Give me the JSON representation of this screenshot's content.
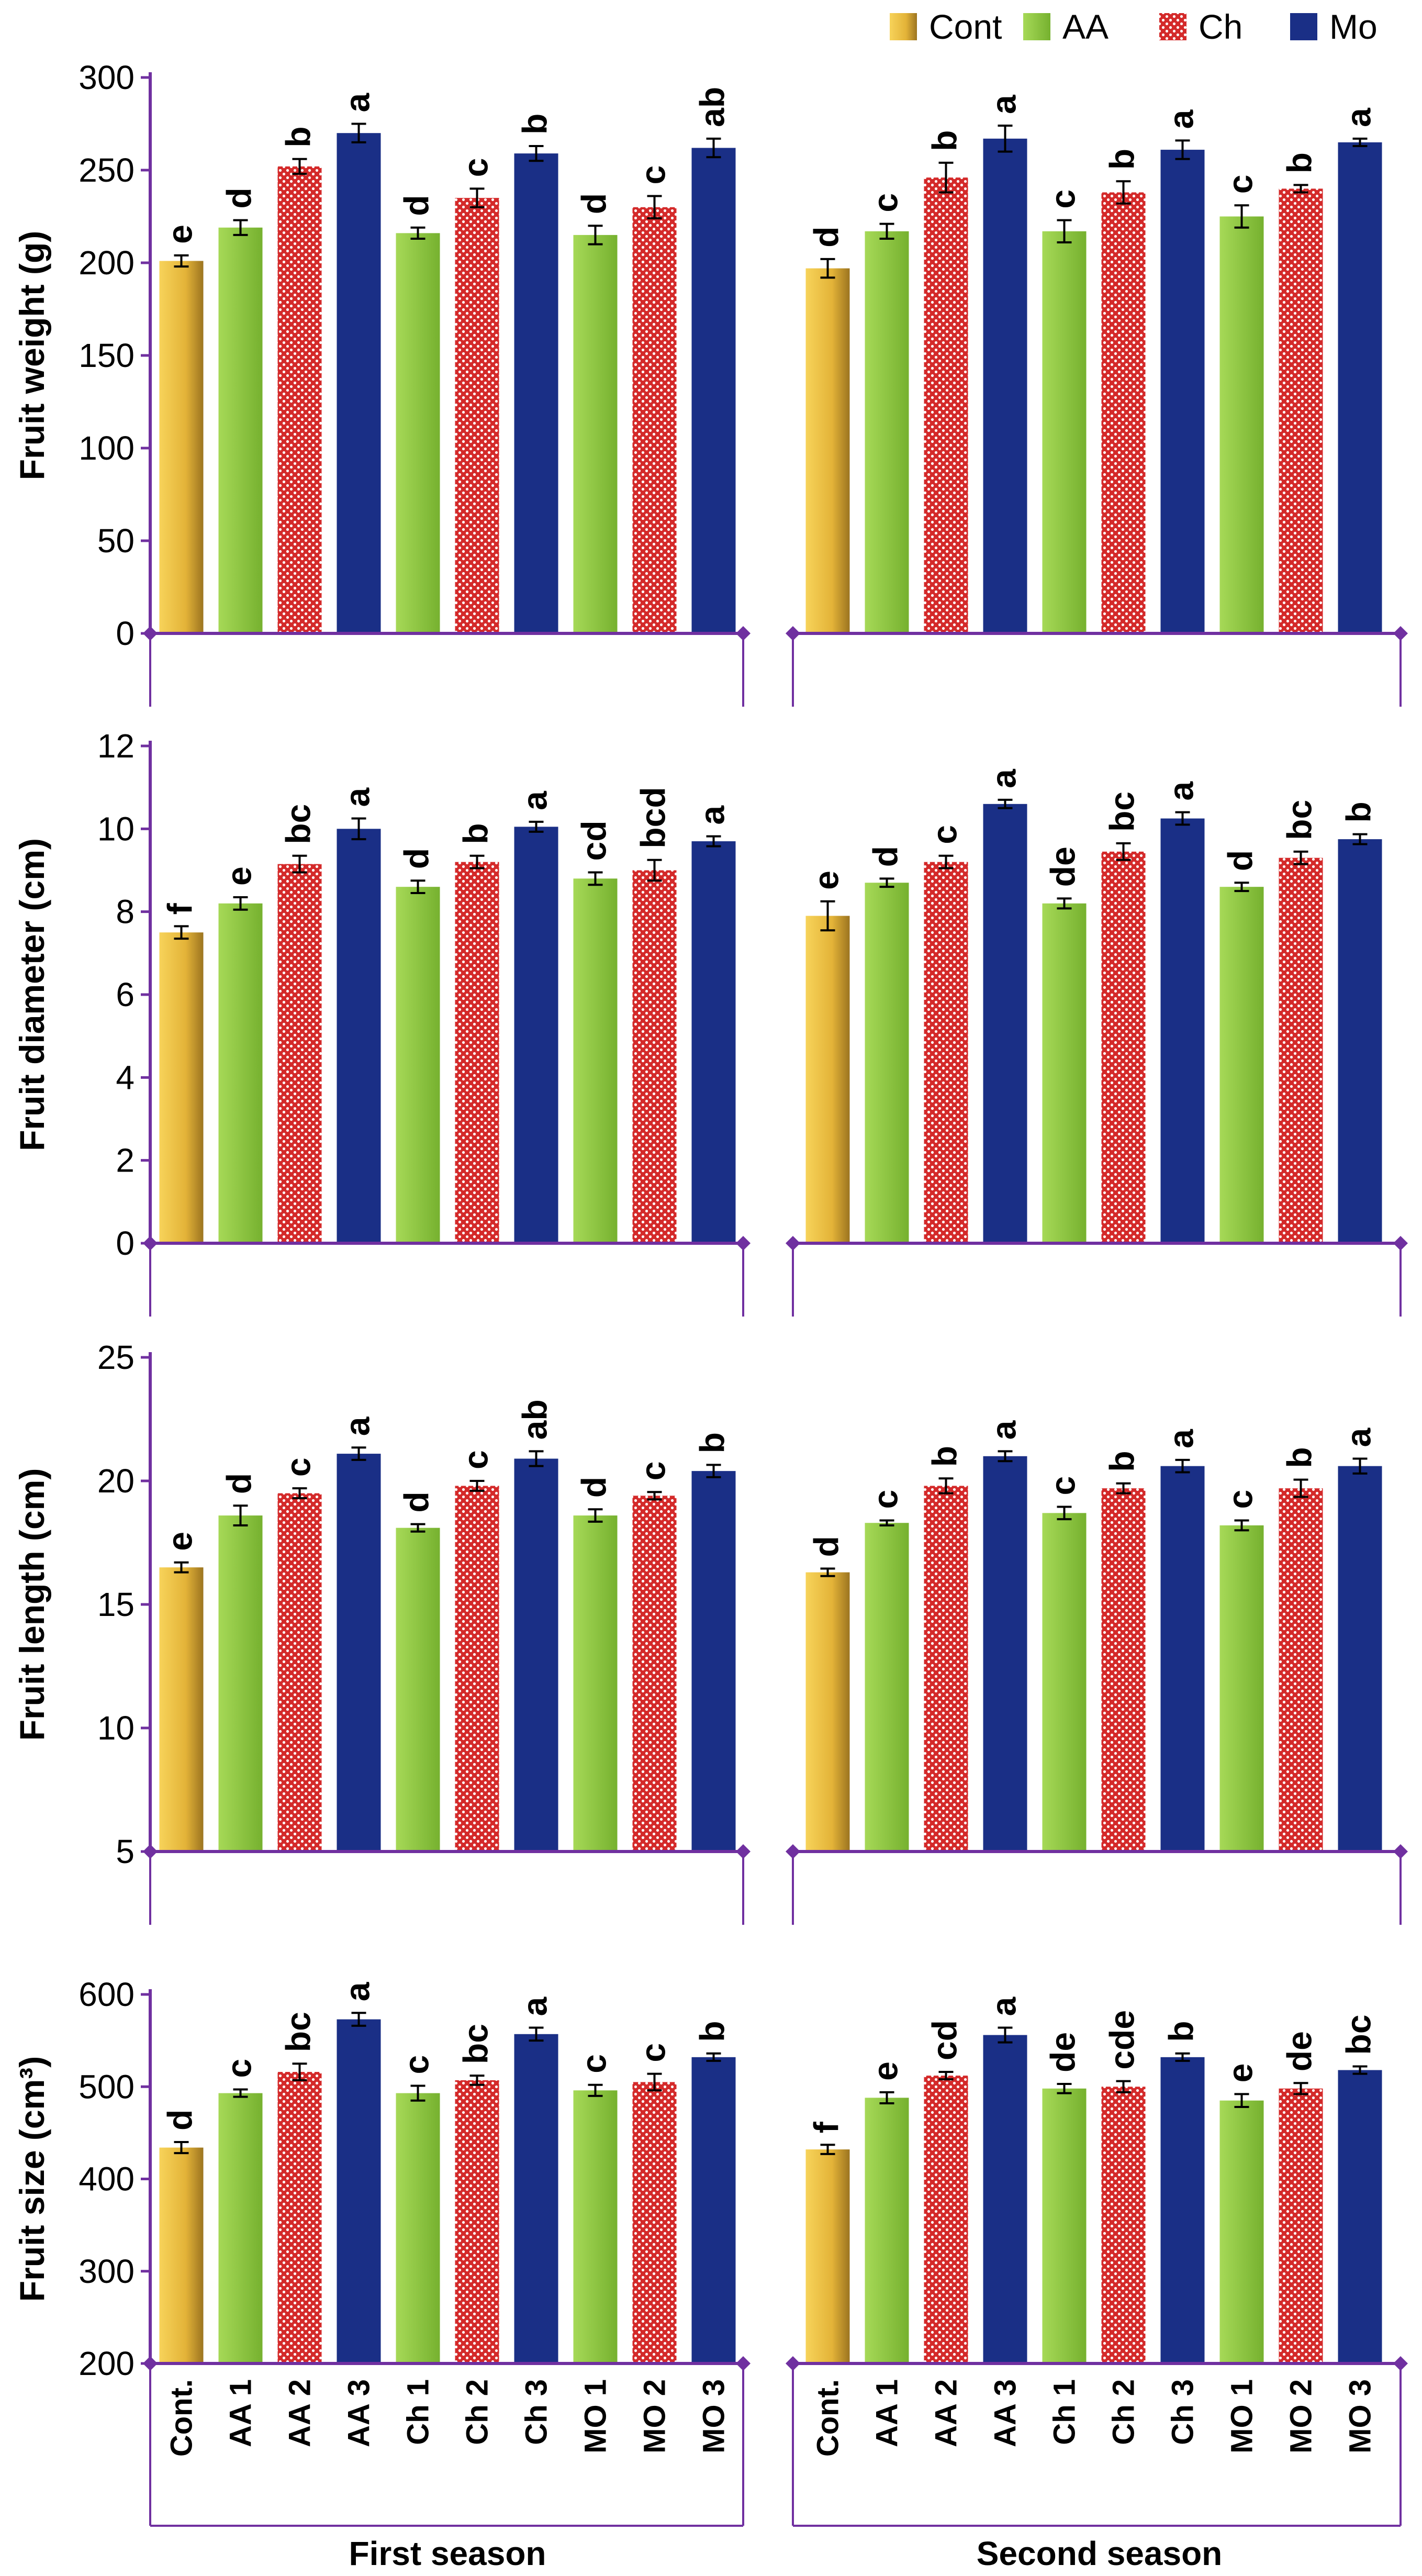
{
  "colors": {
    "cont": "#e9b73a",
    "aa": "#8cc63f",
    "ch": "#d42a2a",
    "mo": "#1a2f86",
    "axis": "#7030a0"
  },
  "legend": [
    {
      "key": "cont",
      "label": "Cont"
    },
    {
      "key": "aa",
      "label": "AA"
    },
    {
      "key": "ch",
      "label": "Ch"
    },
    {
      "key": "mo",
      "label": "Mo"
    }
  ],
  "seasons": [
    "First season",
    "Second season"
  ],
  "categories": [
    "Cont.",
    "AA 1",
    "AA 2",
    "AA 3",
    "Ch 1",
    "Ch 2",
    "Ch 3",
    "MO 1",
    "MO 2",
    "MO 3"
  ],
  "bar_types": [
    "cont",
    "aa",
    "ch",
    "mo",
    "aa",
    "ch",
    "mo",
    "aa",
    "ch",
    "mo"
  ],
  "chart_data": [
    {
      "type": "bar",
      "ylabel": "Fruit weight (g)",
      "ylim": [
        0,
        300
      ],
      "yticks": [
        0,
        50,
        100,
        150,
        200,
        250,
        300
      ],
      "categories": [
        "Cont.",
        "AA 1",
        "AA 2",
        "AA 3",
        "Ch 1",
        "Ch 2",
        "Ch 3",
        "MO 1",
        "MO 2",
        "MO 3"
      ],
      "series": [
        {
          "name": "First season",
          "values": [
            201,
            219,
            252,
            270,
            216,
            235,
            259,
            215,
            230,
            262
          ],
          "errors": [
            3,
            4,
            4,
            5,
            3,
            5,
            4,
            5,
            6,
            5
          ],
          "letters": [
            "e",
            "d",
            "b",
            "a",
            "d",
            "c",
            "b",
            "d",
            "c",
            "ab"
          ]
        },
        {
          "name": "Second season",
          "values": [
            197,
            217,
            246,
            267,
            217,
            238,
            261,
            225,
            240,
            265
          ],
          "errors": [
            5,
            4,
            8,
            7,
            6,
            6,
            5,
            6,
            2,
            2
          ],
          "letters": [
            "d",
            "c",
            "b",
            "a",
            "c",
            "b",
            "a",
            "c",
            "b",
            "a"
          ]
        }
      ]
    },
    {
      "type": "bar",
      "ylabel": "Fruit diameter (cm)",
      "ylim": [
        0,
        12
      ],
      "yticks": [
        0,
        2,
        4,
        6,
        8,
        10,
        12
      ],
      "categories": [
        "Cont.",
        "AA 1",
        "AA 2",
        "AA 3",
        "Ch 1",
        "Ch 2",
        "Ch 3",
        "MO 1",
        "MO 2",
        "MO 3"
      ],
      "series": [
        {
          "name": "First season",
          "values": [
            7.5,
            8.2,
            9.15,
            10.0,
            8.6,
            9.2,
            10.05,
            8.8,
            9.0,
            9.7
          ],
          "errors": [
            0.15,
            0.15,
            0.2,
            0.25,
            0.15,
            0.15,
            0.12,
            0.15,
            0.25,
            0.12
          ],
          "letters": [
            "f",
            "e",
            "bc",
            "a",
            "d",
            "b",
            "a",
            "cd",
            "bcd",
            "a"
          ]
        },
        {
          "name": "Second season",
          "values": [
            7.9,
            8.7,
            9.2,
            10.6,
            8.2,
            9.45,
            10.25,
            8.6,
            9.3,
            9.75
          ],
          "errors": [
            0.35,
            0.1,
            0.15,
            0.1,
            0.12,
            0.2,
            0.15,
            0.1,
            0.15,
            0.12
          ],
          "letters": [
            "e",
            "d",
            "c",
            "a",
            "de",
            "bc",
            "a",
            "d",
            "bc",
            "b"
          ]
        }
      ]
    },
    {
      "type": "bar",
      "ylabel": "Fruit length (cm)",
      "ylim": [
        5,
        25
      ],
      "yticks": [
        5,
        10,
        15,
        20,
        25
      ],
      "categories": [
        "Cont.",
        "AA 1",
        "AA 2",
        "AA 3",
        "Ch 1",
        "Ch 2",
        "Ch 3",
        "MO 1",
        "MO 2",
        "MO 3"
      ],
      "series": [
        {
          "name": "First season",
          "values": [
            16.5,
            18.6,
            19.5,
            21.1,
            18.1,
            19.8,
            20.9,
            18.6,
            19.4,
            20.4
          ],
          "errors": [
            0.2,
            0.4,
            0.2,
            0.25,
            0.15,
            0.2,
            0.3,
            0.25,
            0.15,
            0.25
          ],
          "letters": [
            "e",
            "d",
            "c",
            "a",
            "d",
            "c",
            "ab",
            "d",
            "c",
            "b"
          ]
        },
        {
          "name": "Second season",
          "values": [
            16.3,
            18.3,
            19.8,
            21.0,
            18.7,
            19.7,
            20.6,
            18.2,
            19.7,
            20.6
          ],
          "errors": [
            0.15,
            0.1,
            0.3,
            0.2,
            0.25,
            0.2,
            0.25,
            0.2,
            0.35,
            0.3
          ],
          "letters": [
            "d",
            "c",
            "b",
            "a",
            "c",
            "b",
            "a",
            "c",
            "b",
            "a"
          ]
        }
      ]
    },
    {
      "type": "bar",
      "ylabel": "Fruit size (cm³)",
      "ylim": [
        200,
        600
      ],
      "yticks": [
        200,
        300,
        400,
        500,
        600
      ],
      "categories": [
        "Cont.",
        "AA 1",
        "AA 2",
        "AA 3",
        "Ch 1",
        "Ch 2",
        "Ch 3",
        "MO 1",
        "MO 2",
        "MO 3"
      ],
      "series": [
        {
          "name": "First season",
          "values": [
            434,
            493,
            516,
            573,
            493,
            507,
            557,
            496,
            505,
            532
          ],
          "errors": [
            6,
            4,
            9,
            7,
            8,
            5,
            7,
            6,
            9,
            4
          ],
          "letters": [
            "d",
            "c",
            "bc",
            "a",
            "c",
            "bc",
            "a",
            "c",
            "c",
            "b"
          ]
        },
        {
          "name": "Second season",
          "values": [
            432,
            488,
            512,
            556,
            498,
            500,
            532,
            485,
            498,
            518
          ],
          "errors": [
            5,
            6,
            4,
            8,
            5,
            6,
            4,
            7,
            6,
            4
          ],
          "letters": [
            "f",
            "e",
            "cd",
            "a",
            "de",
            "cde",
            "b",
            "e",
            "de",
            "bc"
          ]
        }
      ]
    }
  ]
}
